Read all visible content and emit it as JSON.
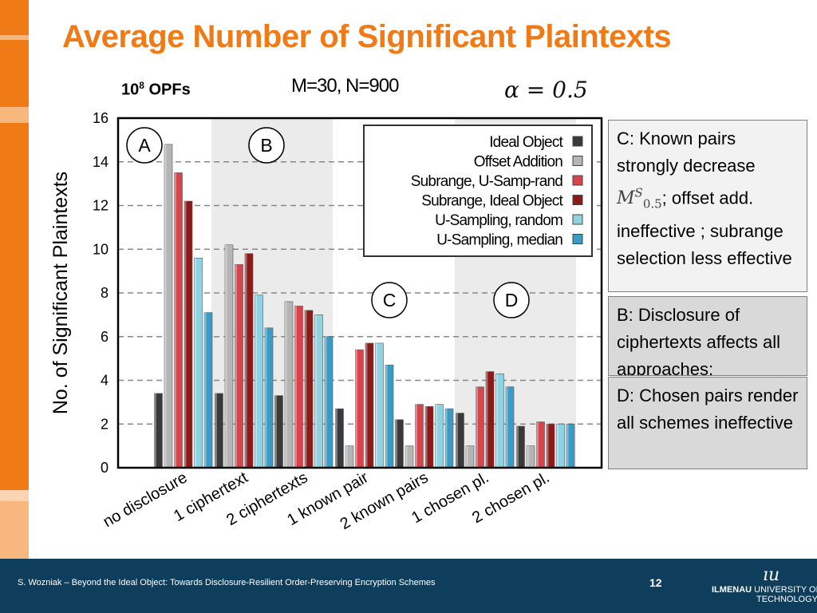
{
  "slide": {
    "title": "Average Number of Significant Plaintexts",
    "opfs_base": "10",
    "opfs_exp": "8",
    "opfs_unit": "OPFs",
    "params": "M=30, N=900",
    "alpha": "α = 0.5"
  },
  "notes": {
    "c": {
      "line1": "C: Known pairs strongly decrease",
      "symbol_base": "M",
      "symbol_sub": "0.5",
      "symbol_sup": "S",
      "line2": ";  offset add. ineffective ; subrange selection less effective"
    },
    "b": {
      "text": "B: Disclosure of ciphertexts affects all approaches;"
    },
    "d": {
      "text": "D: Chosen pairs render all schemes ineffective"
    }
  },
  "footer": {
    "text": "S. Wozniak  –  Beyond the Ideal Object: Towards Disclosure-Resilient Order-Preserving Encryption Schemes",
    "page": "12",
    "logo_mark": "ıu",
    "logo_bold": "ILMENAU",
    "logo_rest": " UNIVERSITY OF",
    "logo_line2": "TECHNOLOGY"
  },
  "colors": {
    "accent_orange": "#f07b16",
    "footer_navy": "#0f3d5c"
  },
  "chart_data": {
    "type": "bar",
    "ylabel": "No. of Significant Plaintexts",
    "ylim": [
      0,
      16
    ],
    "yticks": [
      0,
      2,
      4,
      6,
      8,
      10,
      12,
      14,
      16
    ],
    "grid": "horizontal dashed",
    "legend_position": "top-right",
    "categories": [
      "no disclosure",
      "1 ciphertext",
      "2 ciphertexts",
      "1 known pair",
      "2 known pairs",
      "1 chosen pl.",
      "2 chosen pl."
    ],
    "series": [
      {
        "name": "Ideal Object",
        "color": "#3a3a3a",
        "values": [
          3.4,
          3.4,
          3.3,
          2.7,
          2.2,
          2.5,
          1.9
        ]
      },
      {
        "name": "Offset Addition",
        "color": "#b5b5b5",
        "values": [
          14.8,
          10.2,
          7.6,
          1.0,
          1.0,
          1.0,
          1.0
        ]
      },
      {
        "name": "Subrange, U-Samp-rand",
        "color": "#d9434b",
        "values": [
          13.5,
          9.3,
          7.4,
          5.4,
          2.9,
          3.7,
          2.1
        ]
      },
      {
        "name": "Subrange, Ideal Object",
        "color": "#8b1a1a",
        "values": [
          12.2,
          9.8,
          7.2,
          5.7,
          2.8,
          4.4,
          2.0
        ]
      },
      {
        "name": "U-Sampling, random",
        "color": "#8fd3e3",
        "values": [
          9.6,
          7.9,
          7.0,
          5.7,
          2.9,
          4.3,
          2.0
        ]
      },
      {
        "name": "U-Sampling, median",
        "color": "#3a9cc4",
        "values": [
          7.1,
          6.4,
          6.0,
          4.7,
          2.7,
          3.7,
          2.0
        ]
      }
    ],
    "regions": [
      {
        "label": "A",
        "categories": [
          0
        ]
      },
      {
        "label": "B",
        "categories": [
          1,
          2
        ]
      },
      {
        "label": "C",
        "categories": [
          3,
          4
        ]
      },
      {
        "label": "D",
        "categories": [
          5,
          6
        ]
      }
    ]
  }
}
